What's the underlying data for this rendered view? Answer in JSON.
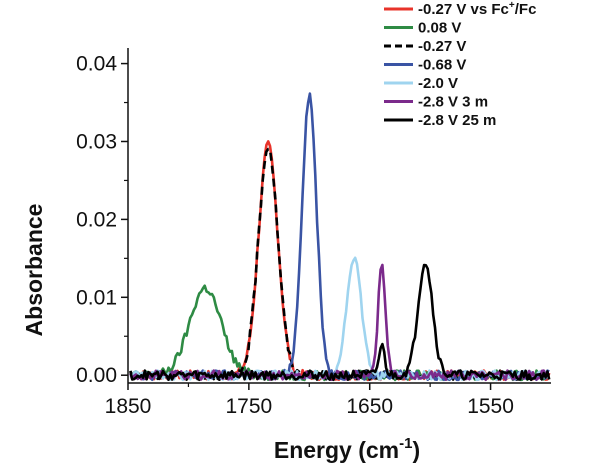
{
  "chart_data": {
    "type": "line",
    "xlabel": "Energy (cm",
    "xlabel_sup": "-1",
    "xlabel_end": ")",
    "ylabel": "Absorbance",
    "xlim": [
      1850,
      1500
    ],
    "ylim": [
      -0.001,
      0.042
    ],
    "x_reversed": true,
    "x_ticks": [
      1850,
      1750,
      1650,
      1550
    ],
    "x_tick_labels": [
      "1850",
      "1750",
      "1650",
      "1550"
    ],
    "y_ticks": [
      0.0,
      0.01,
      0.02,
      0.03,
      0.04
    ],
    "y_tick_labels": [
      "0.00",
      "0.01",
      "0.02",
      "0.03",
      "0.04"
    ],
    "grid": false,
    "legend_position": "top-right",
    "series": [
      {
        "name": "-0.27 V vs Fc+/Fc",
        "color": "#e8332a",
        "dash": "solid",
        "peaks": [
          {
            "center": 1734,
            "height": 0.0295,
            "width": 8
          }
        ]
      },
      {
        "name": "0.08 V",
        "color": "#2e8b44",
        "dash": "solid",
        "peaks": [
          {
            "center": 1786,
            "height": 0.0112,
            "width": 13
          }
        ]
      },
      {
        "name": "-0.27 V",
        "color": "#000000",
        "dash": "dashed",
        "peaks": [
          {
            "center": 1734,
            "height": 0.0295,
            "width": 8
          }
        ]
      },
      {
        "name": "-0.68 V",
        "color": "#3a54a4",
        "dash": "solid",
        "peaks": [
          {
            "center": 1700,
            "height": 0.036,
            "width": 6
          }
        ]
      },
      {
        "name": "-2.0 V",
        "color": "#9fd4ef",
        "dash": "solid",
        "peaks": [
          {
            "center": 1663,
            "height": 0.0152,
            "width": 6
          }
        ]
      },
      {
        "name": "-2.8 V 3 m",
        "color": "#7b2a8b",
        "dash": "solid",
        "peaks": [
          {
            "center": 1640,
            "height": 0.0146,
            "width": 3
          }
        ]
      },
      {
        "name": "-2.8 V 25 m",
        "color": "#000000",
        "dash": "solid",
        "peaks": [
          {
            "center": 1604,
            "height": 0.0146,
            "width": 6
          },
          {
            "center": 1640,
            "height": 0.0037,
            "width": 2.5
          }
        ]
      }
    ],
    "legend_entries": [
      {
        "pre": "-0.27 V vs Fc",
        "sup": "+",
        "post": "/Fc",
        "color": "#e8332a",
        "dash": "solid"
      },
      {
        "pre": "0.08 V",
        "sup": "",
        "post": "",
        "color": "#2e8b44",
        "dash": "solid"
      },
      {
        "pre": "-0.27 V",
        "sup": "",
        "post": "",
        "color": "#000000",
        "dash": "dashed"
      },
      {
        "pre": "-0.68 V",
        "sup": "",
        "post": "",
        "color": "#3a54a4",
        "dash": "solid"
      },
      {
        "pre": "-2.0 V",
        "sup": "",
        "post": "",
        "color": "#9fd4ef",
        "dash": "solid"
      },
      {
        "pre": "-2.8 V 3 m",
        "sup": "",
        "post": "",
        "color": "#7b2a8b",
        "dash": "solid"
      },
      {
        "pre": "-2.8 V 25 m",
        "sup": "",
        "post": "",
        "color": "#000000",
        "dash": "solid"
      }
    ]
  }
}
